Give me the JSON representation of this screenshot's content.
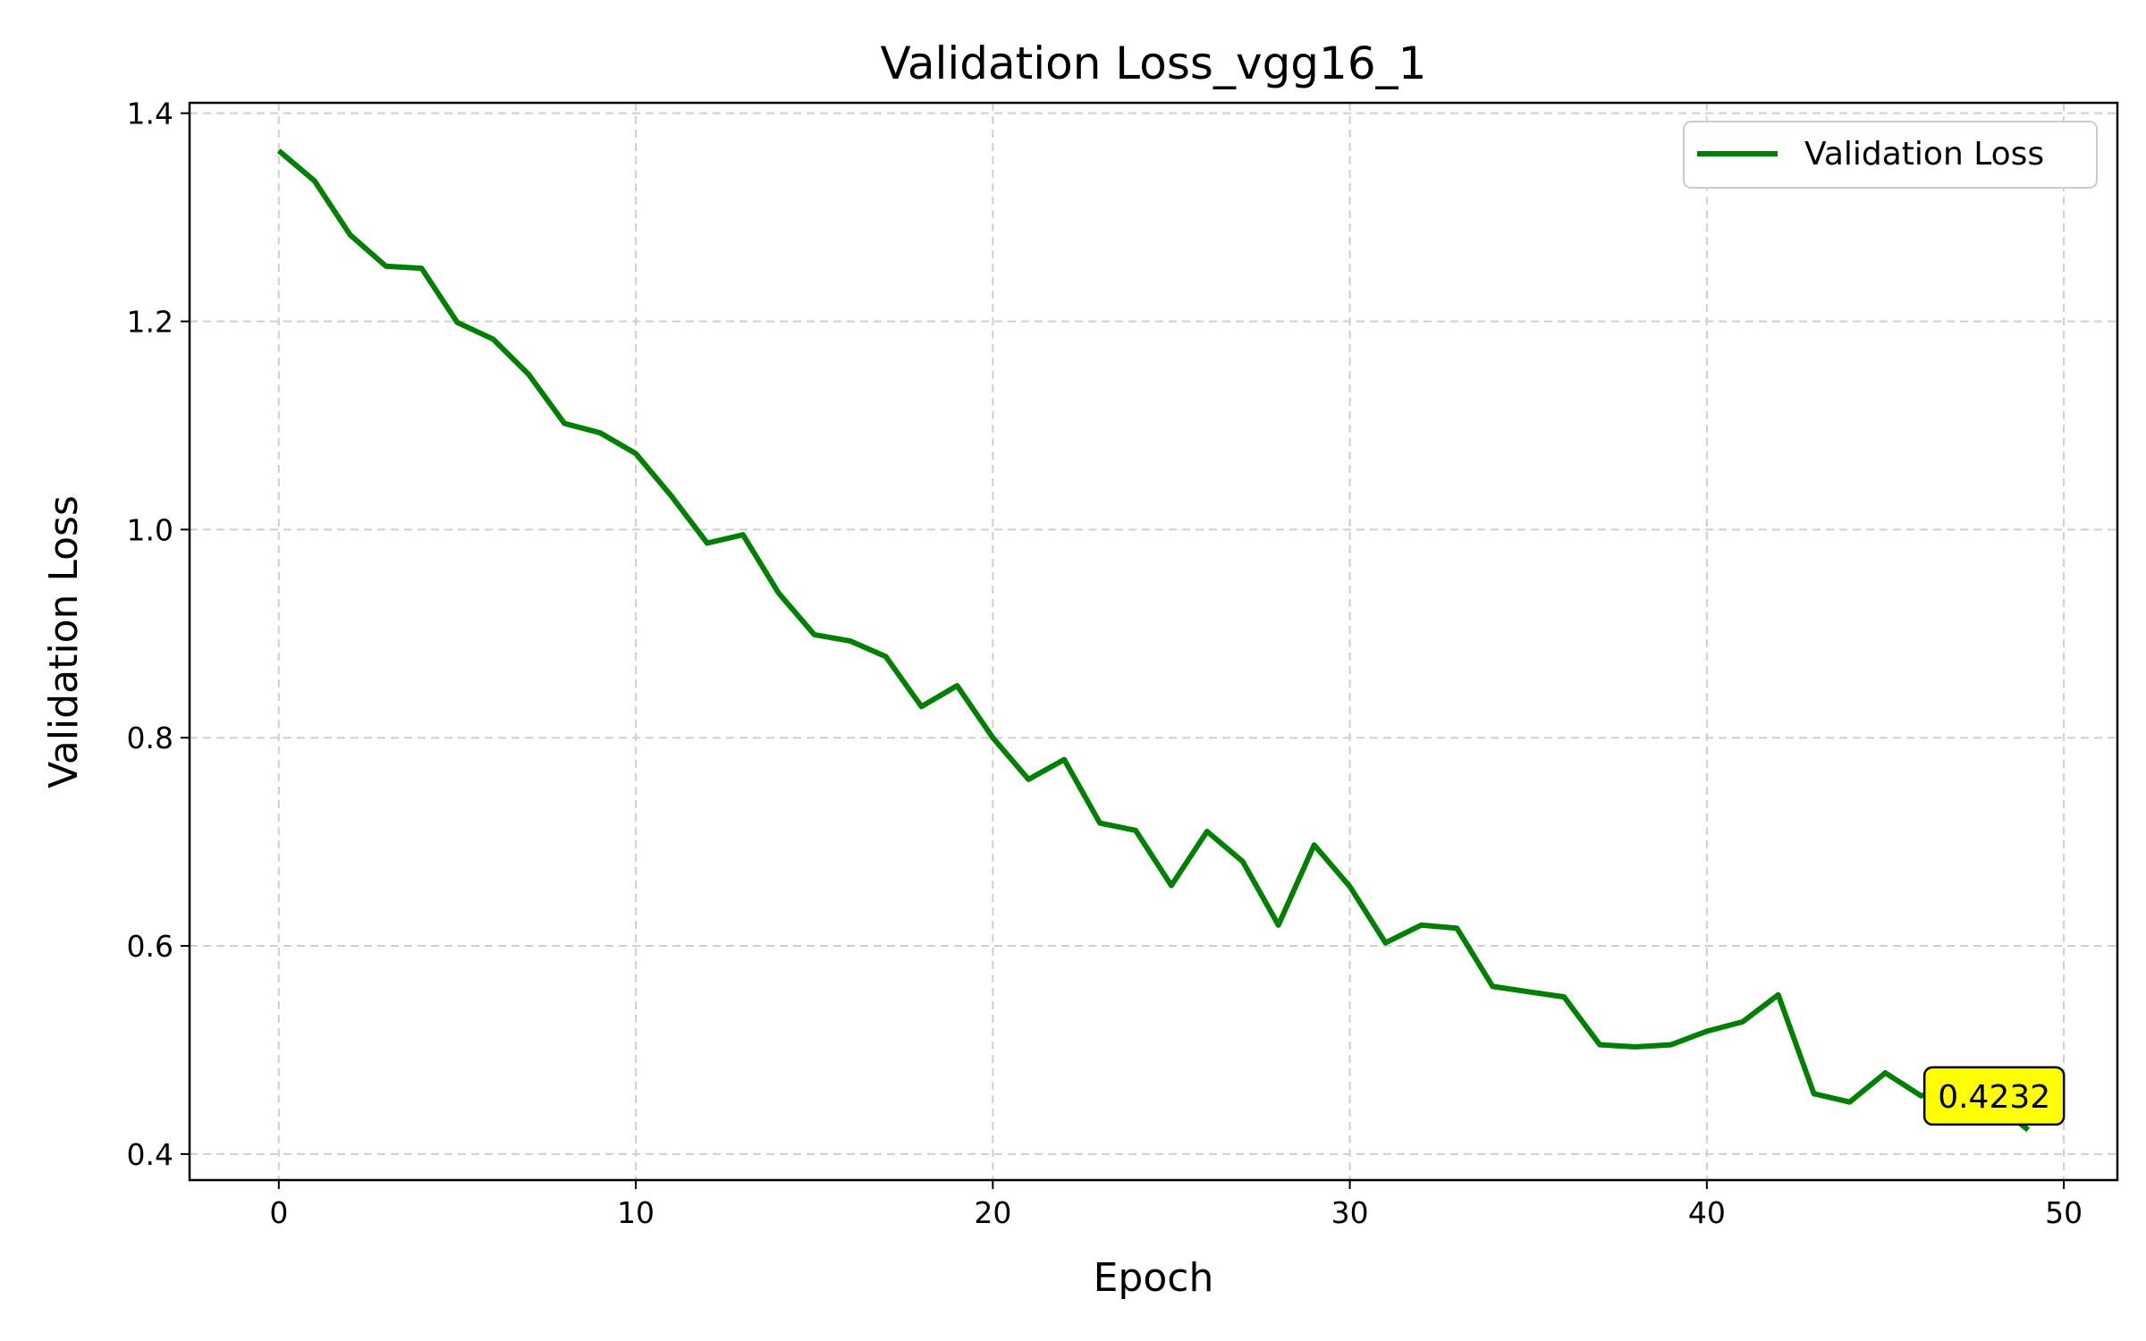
{
  "chart_data": {
    "type": "line",
    "title": "Validation Loss_vgg16_1",
    "xlabel": "Epoch",
    "ylabel": "Validation Loss",
    "xlim": [
      -2.5,
      51.5
    ],
    "ylim": [
      0.375,
      1.41
    ],
    "xticks": [
      0,
      10,
      20,
      30,
      40,
      50
    ],
    "yticks": [
      0.4,
      0.6,
      0.8,
      1.0,
      1.2,
      1.4
    ],
    "xtick_labels": [
      "0",
      "10",
      "20",
      "30",
      "40",
      "50"
    ],
    "ytick_labels": [
      "0.4",
      "0.6",
      "0.8",
      "1.0",
      "1.2",
      "1.4"
    ],
    "grid": true,
    "legend_position": "top-right",
    "series": [
      {
        "name": "Validation Loss",
        "color": "#008000",
        "x": [
          0,
          1,
          2,
          3,
          4,
          5,
          6,
          7,
          8,
          9,
          10,
          11,
          12,
          13,
          14,
          15,
          16,
          17,
          18,
          19,
          20,
          21,
          22,
          23,
          24,
          25,
          26,
          27,
          28,
          29,
          30,
          31,
          32,
          33,
          34,
          35,
          36,
          37,
          38,
          39,
          40,
          41,
          42,
          43,
          44,
          45,
          46,
          47,
          48,
          49
        ],
        "y": [
          1.364,
          1.335,
          1.283,
          1.253,
          1.251,
          1.199,
          1.183,
          1.149,
          1.102,
          1.093,
          1.073,
          1.032,
          0.987,
          0.995,
          0.939,
          0.899,
          0.893,
          0.878,
          0.83,
          0.85,
          0.8,
          0.76,
          0.779,
          0.718,
          0.711,
          0.658,
          0.71,
          0.681,
          0.62,
          0.697,
          0.657,
          0.603,
          0.62,
          0.617,
          0.561,
          0.556,
          0.551,
          0.505,
          0.503,
          0.505,
          0.518,
          0.527,
          0.553,
          0.458,
          0.45,
          0.478,
          0.456,
          0.462,
          0.451,
          0.4232
        ]
      }
    ],
    "annotation": {
      "text": "0.4232",
      "x": 49,
      "y": 0.4232,
      "background": "#ffff00"
    }
  }
}
